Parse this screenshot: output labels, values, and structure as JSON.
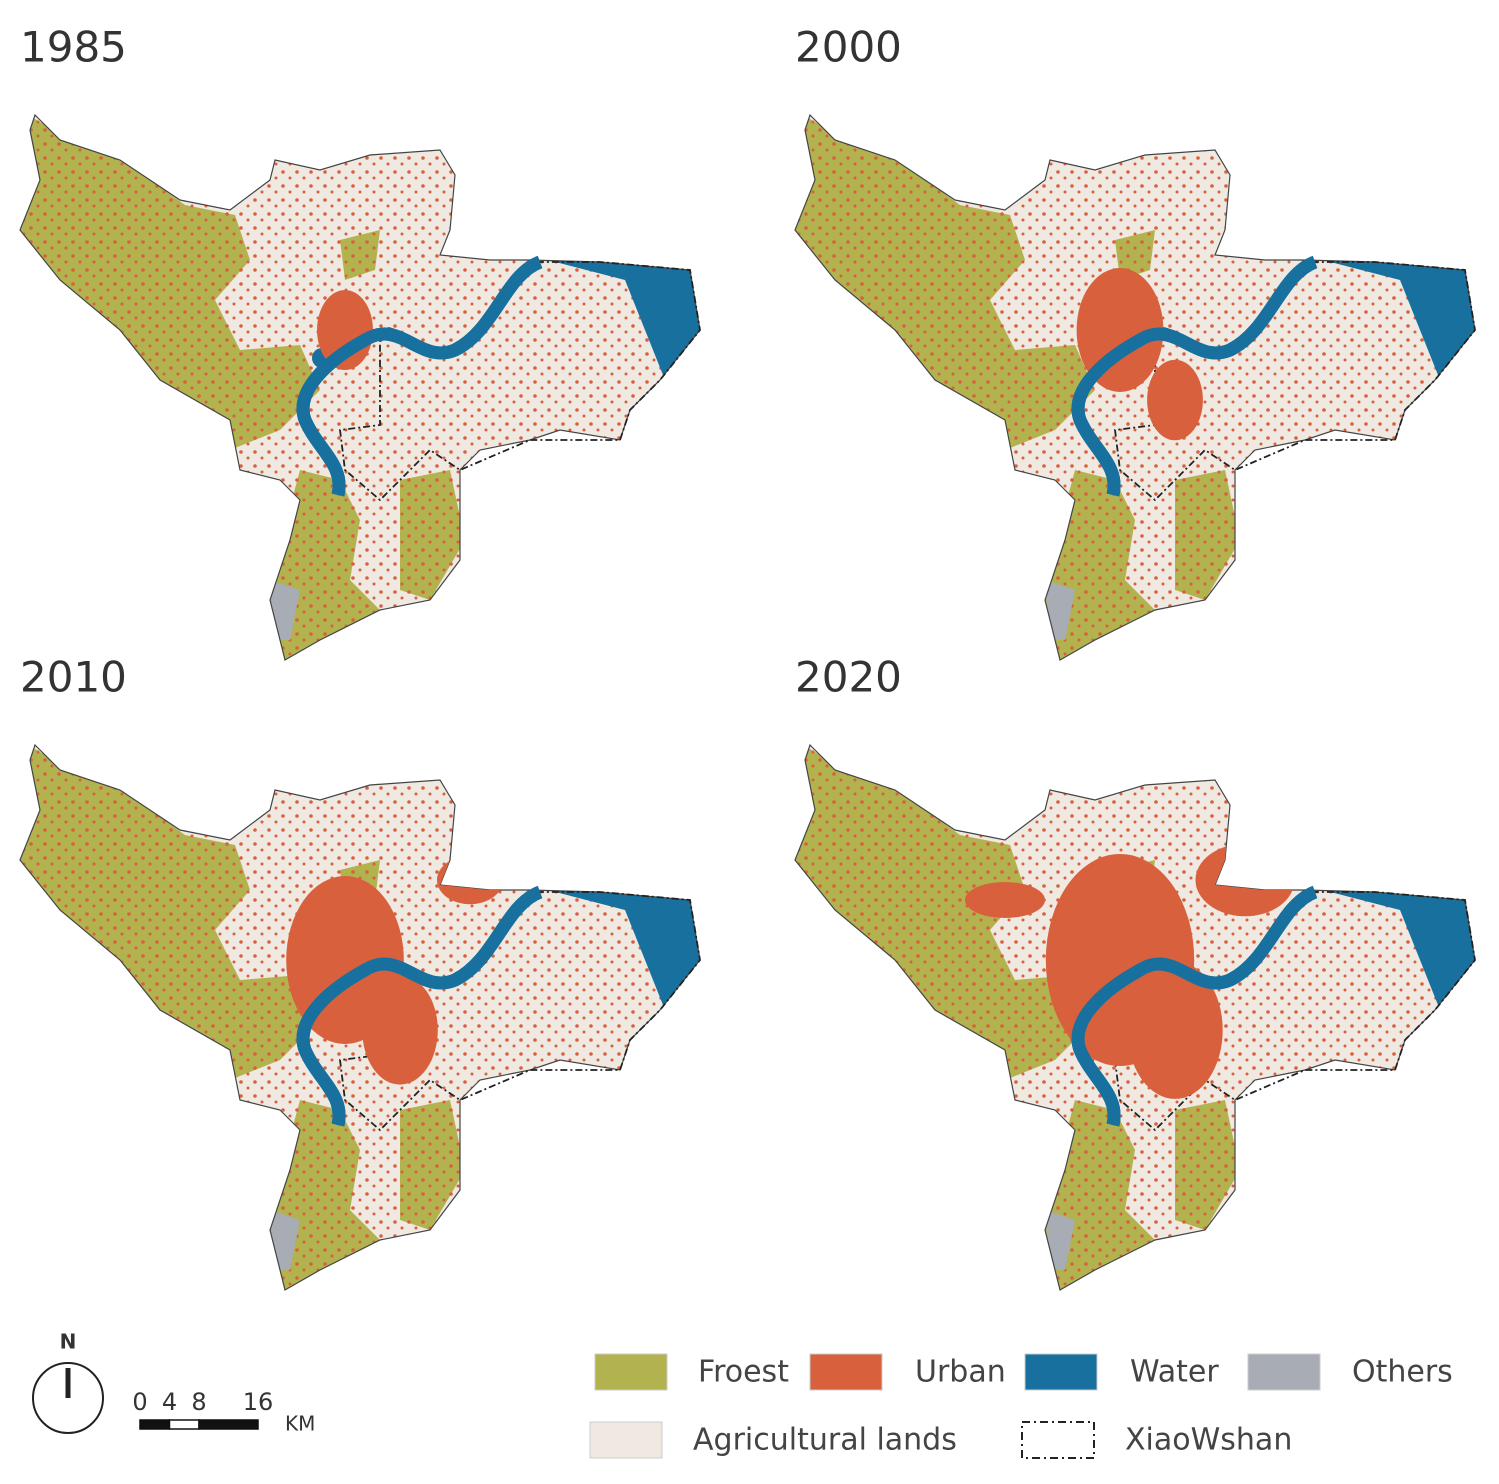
{
  "panels": [
    {
      "title": "1985"
    },
    {
      "title": "2000"
    },
    {
      "title": "2010"
    },
    {
      "title": "2020"
    }
  ],
  "legend": {
    "items": [
      {
        "label": "Froest",
        "color": "#b2b24f"
      },
      {
        "label": "Urban",
        "color": "#d8603c"
      },
      {
        "label": "Water",
        "color": "#17709d"
      },
      {
        "label": "Others",
        "color": "#a8acb5"
      },
      {
        "label": "Agricultural lands",
        "color": "#efe9e1"
      },
      {
        "label": "XiaoWshan",
        "color": "#222222",
        "style": "dashed"
      }
    ]
  },
  "north_arrow": {
    "label": "N"
  },
  "scale_bar": {
    "ticks": [
      0,
      4,
      8,
      16
    ],
    "unit": "KM"
  }
}
